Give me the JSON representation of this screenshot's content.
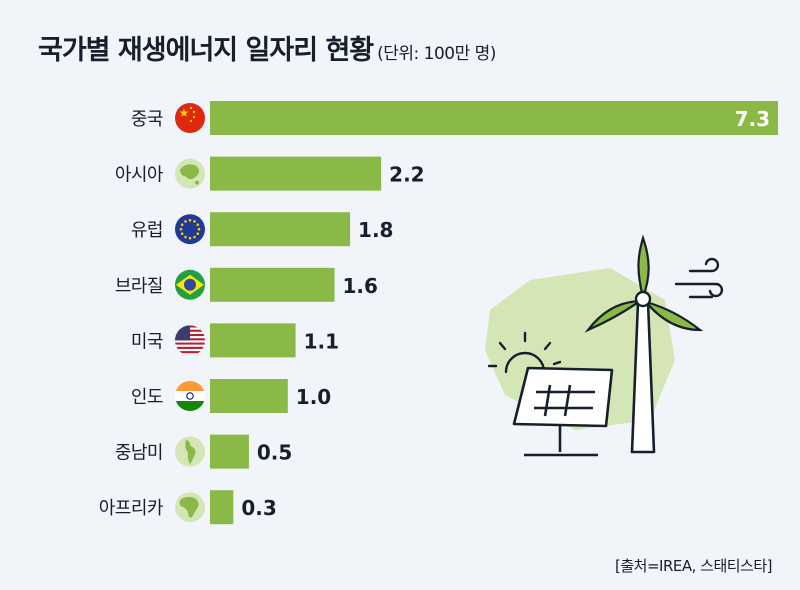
{
  "header": {
    "title": "국가별 재생에너지 일자리 현황",
    "unit": "(단위: 100만 명)"
  },
  "footer": {
    "source": "[출처=IREA, 스태티스타]"
  },
  "colors": {
    "bar": "#8ab947",
    "background": "#f1f4f8",
    "text": "#16202c",
    "bar_label_inside": "#ffffff"
  },
  "chart_data": {
    "type": "bar",
    "orientation": "horizontal",
    "categories": [
      "중국",
      "아시아",
      "유럽",
      "브라질",
      "미국",
      "인도",
      "중남미",
      "아프리카"
    ],
    "category_icons": [
      "china-flag-icon",
      "asia-map-icon",
      "eu-flag-icon",
      "brazil-flag-icon",
      "usa-flag-icon",
      "india-flag-icon",
      "latin-america-map-icon",
      "africa-map-icon"
    ],
    "value_labels": [
      "7.3",
      "2.2",
      "1.8",
      "1.6",
      "1.1",
      "1.0",
      "0.5",
      "0.3"
    ],
    "values": [
      7.3,
      2.2,
      1.8,
      1.6,
      1.1,
      1.0,
      0.5,
      0.3
    ],
    "title": "국가별 재생에너지 일자리 현황",
    "unit": "(단위: 100만 명)",
    "xlim": [
      0,
      7.3
    ],
    "grid": false,
    "legend": "none"
  }
}
